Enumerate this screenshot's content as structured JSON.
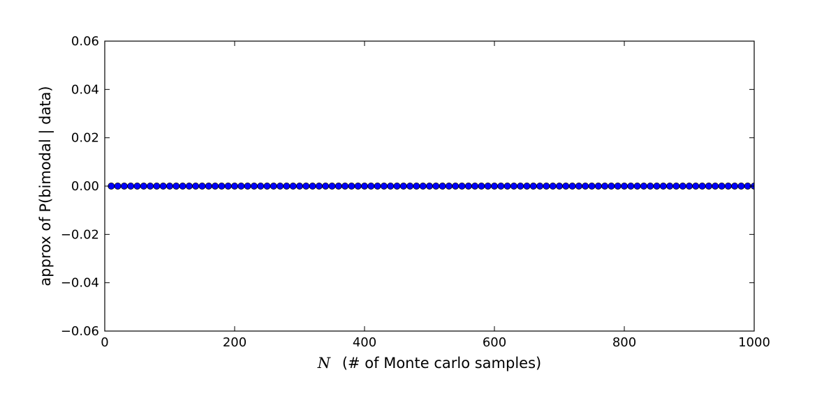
{
  "chart_data": {
    "type": "scatter",
    "xlabel_var": "N",
    "xlabel_text": "(# of Monte carlo samples)",
    "ylabel": "approx of P(bimodal | data)",
    "xlim": [
      0,
      1000
    ],
    "ylim": [
      -0.06,
      0.06
    ],
    "x_ticks": [
      0,
      200,
      400,
      600,
      800,
      1000
    ],
    "x_tick_labels": [
      "0",
      "200",
      "400",
      "600",
      "800",
      "1000"
    ],
    "y_ticks": [
      0.06,
      0.04,
      0.02,
      0.0,
      -0.02,
      -0.04,
      -0.06
    ],
    "y_tick_labels": [
      "0.06",
      "0.04",
      "0.02",
      "0.00",
      "−0.02",
      "−0.04",
      "−0.06"
    ],
    "grid": false,
    "marker_color": "#0000ff",
    "series": [
      {
        "x_start": 10,
        "x_end": 1000,
        "x_step": 10,
        "y_constant": 0.0
      }
    ]
  }
}
